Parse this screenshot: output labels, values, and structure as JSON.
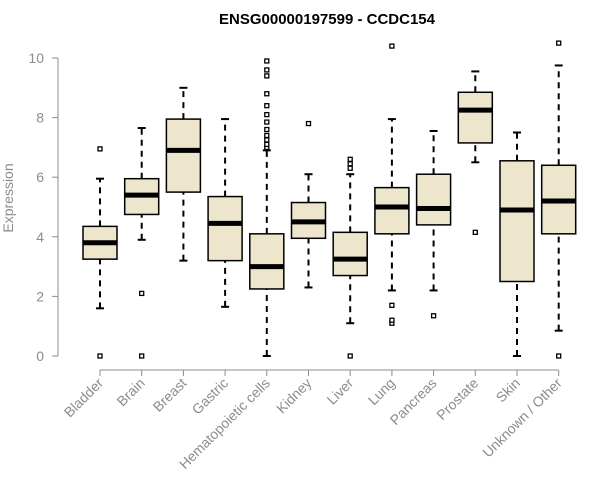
{
  "chart_data": {
    "type": "box",
    "title": "ENSG00000197599 - CCDC154",
    "xlabel": "",
    "ylabel": "Expression",
    "ylim": [
      0,
      10.5
    ],
    "yticks": [
      0,
      2,
      4,
      6,
      8,
      10
    ],
    "categories": [
      "Bladder",
      "Brain",
      "Breast",
      "Gastric",
      "Hematopoietic cells",
      "Kidney",
      "Liver",
      "Lung",
      "Pancreas",
      "Prostate",
      "Skin",
      "Unknown / Other"
    ],
    "boxes": [
      {
        "name": "Bladder",
        "whisker_low": 1.6,
        "q1": 3.25,
        "median": 3.8,
        "q3": 4.35,
        "whisker_high": 5.95,
        "outliers": [
          0.0,
          6.95
        ]
      },
      {
        "name": "Brain",
        "whisker_low": 3.9,
        "q1": 4.75,
        "median": 5.4,
        "q3": 5.95,
        "whisker_high": 7.65,
        "outliers": [
          0.0,
          2.1
        ]
      },
      {
        "name": "Breast",
        "whisker_low": 3.2,
        "q1": 5.5,
        "median": 6.9,
        "q3": 7.95,
        "whisker_high": 9.0,
        "outliers": []
      },
      {
        "name": "Gastric",
        "whisker_low": 1.65,
        "q1": 3.2,
        "median": 4.45,
        "q3": 5.35,
        "whisker_high": 7.95,
        "outliers": []
      },
      {
        "name": "Hematopoietic cells",
        "whisker_low": 0.0,
        "q1": 2.25,
        "median": 3.0,
        "q3": 4.1,
        "whisker_high": 6.9,
        "outliers": [
          7.0,
          7.1,
          7.25,
          7.4,
          7.6,
          7.85,
          8.1,
          8.4,
          8.8,
          9.4,
          9.6,
          9.9
        ]
      },
      {
        "name": "Kidney",
        "whisker_low": 2.3,
        "q1": 3.95,
        "median": 4.5,
        "q3": 5.15,
        "whisker_high": 6.1,
        "outliers": [
          7.8
        ]
      },
      {
        "name": "Liver",
        "whisker_low": 1.1,
        "q1": 2.7,
        "median": 3.25,
        "q3": 4.15,
        "whisker_high": 6.1,
        "outliers": [
          0.0,
          6.3,
          6.45,
          6.6
        ]
      },
      {
        "name": "Lung",
        "whisker_low": 2.2,
        "q1": 4.1,
        "median": 5.0,
        "q3": 5.65,
        "whisker_high": 7.95,
        "outliers": [
          1.1,
          1.2,
          1.7,
          10.4
        ]
      },
      {
        "name": "Pancreas",
        "whisker_low": 2.2,
        "q1": 4.4,
        "median": 4.95,
        "q3": 6.1,
        "whisker_high": 7.55,
        "outliers": [
          1.35
        ]
      },
      {
        "name": "Prostate",
        "whisker_low": 6.5,
        "q1": 7.15,
        "median": 8.25,
        "q3": 8.85,
        "whisker_high": 9.55,
        "outliers": [
          4.15
        ]
      },
      {
        "name": "Skin",
        "whisker_low": 0.0,
        "q1": 2.5,
        "median": 4.9,
        "q3": 6.55,
        "whisker_high": 7.5,
        "outliers": []
      },
      {
        "name": "Unknown / Other",
        "whisker_low": 0.85,
        "q1": 4.1,
        "median": 5.2,
        "q3": 6.4,
        "whisker_high": 9.75,
        "outliers": [
          0.0,
          10.5
        ]
      }
    ],
    "box_fill": "#ede6cd",
    "box_stroke": "#000000",
    "axis_color": "#8c8c8c",
    "grid": false,
    "legend": "none"
  }
}
